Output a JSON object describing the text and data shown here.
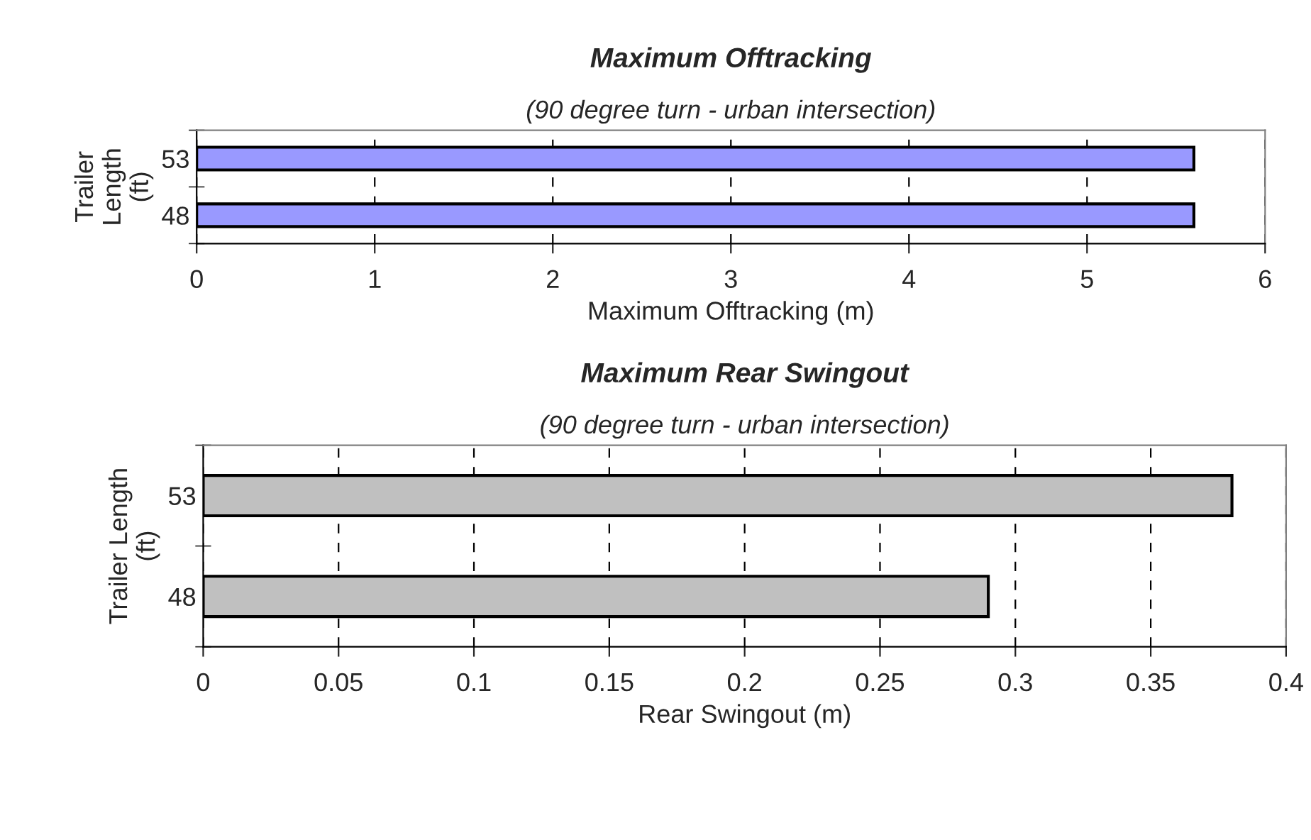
{
  "chart_data": [
    {
      "type": "bar",
      "orientation": "horizontal",
      "title": "Maximum Offtracking",
      "subtitle": "(90 degree turn - urban intersection)",
      "xlabel": "Maximum Offtracking (m)",
      "ylabel": "Trailer\nLength\n(ft)",
      "categories": [
        "53",
        "48"
      ],
      "values": [
        5.6,
        5.6
      ],
      "color": "#9999ff",
      "xlim": [
        0,
        6
      ],
      "xticks": [
        0,
        1,
        2,
        3,
        4,
        5,
        6
      ],
      "grid": "x"
    },
    {
      "type": "bar",
      "orientation": "horizontal",
      "title": "Maximum Rear Swingout",
      "subtitle": "(90 degree turn - urban intersection)",
      "xlabel": "Rear Swingout (m)",
      "ylabel": "Trailer Length\n(ft)",
      "categories": [
        "53",
        "48"
      ],
      "values": [
        0.38,
        0.29
      ],
      "color": "#c0c0c0",
      "xlim": [
        0,
        0.4
      ],
      "xticks": [
        0,
        0.05,
        0.1,
        0.15,
        0.2,
        0.25,
        0.3,
        0.35,
        0.4
      ],
      "grid": "x"
    }
  ]
}
